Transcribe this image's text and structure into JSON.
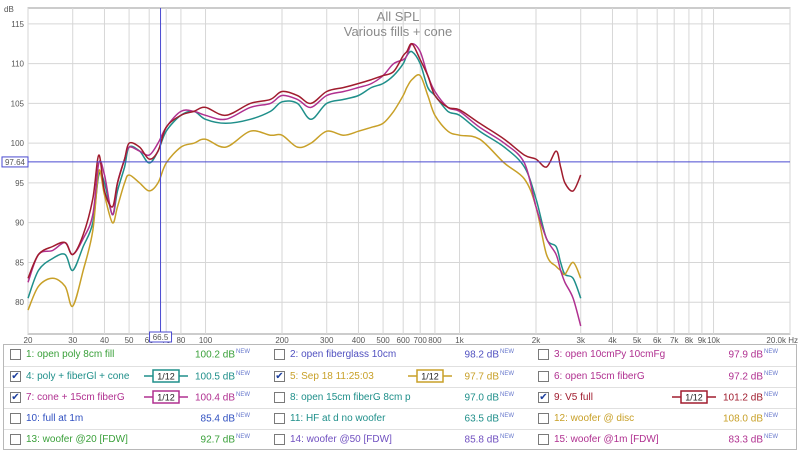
{
  "chart_data": {
    "type": "line",
    "title": "All SPL",
    "subtitle": "Various fills + cone",
    "ylabel": "dB",
    "xlabel_unit": "Hz",
    "xscale": "log",
    "xlim": [
      20,
      20000
    ],
    "ylim": [
      76,
      117
    ],
    "yticks": [
      80,
      85,
      90,
      95,
      100,
      105,
      110,
      115
    ],
    "xticks": [
      {
        "v": 20,
        "label": "20"
      },
      {
        "v": 30,
        "label": "30"
      },
      {
        "v": 40,
        "label": "40"
      },
      {
        "v": 50,
        "label": "50"
      },
      {
        "v": 60,
        "label": "60"
      },
      {
        "v": 70,
        "label": "70"
      },
      {
        "v": 80,
        "label": "80"
      },
      {
        "v": 100,
        "label": "100"
      },
      {
        "v": 200,
        "label": "200"
      },
      {
        "v": 300,
        "label": "300"
      },
      {
        "v": 400,
        "label": "400"
      },
      {
        "v": 500,
        "label": "500"
      },
      {
        "v": 600,
        "label": "600"
      },
      {
        "v": 700,
        "label": "700"
      },
      {
        "v": 800,
        "label": "800"
      },
      {
        "v": 1000,
        "label": "1k"
      },
      {
        "v": 2000,
        "label": "2k"
      },
      {
        "v": 3000,
        "label": "3k"
      },
      {
        "v": 4000,
        "label": "4k"
      },
      {
        "v": 5000,
        "label": "5k"
      },
      {
        "v": 6000,
        "label": "6k"
      },
      {
        "v": 7000,
        "label": "7k"
      },
      {
        "v": 8000,
        "label": "8k"
      },
      {
        "v": 9000,
        "label": "9k"
      },
      {
        "v": 10000,
        "label": "10k"
      },
      {
        "v": 20000,
        "label": "20.0k Hz"
      }
    ],
    "grid": true,
    "cursor": {
      "x": 66.5,
      "x_label": "66.5",
      "y": 97.64,
      "y_label": "97.64"
    },
    "series": [
      {
        "name": "4: poly + fiberGl + cone",
        "color": "#1f8f8a",
        "x": [
          20,
          22,
          25,
          28,
          30,
          33,
          36,
          38,
          40,
          43,
          45,
          48,
          50,
          55,
          60,
          65,
          70,
          80,
          90,
          100,
          120,
          150,
          180,
          200,
          230,
          260,
          300,
          350,
          400,
          450,
          500,
          550,
          600,
          620,
          650,
          700,
          750,
          800,
          900,
          1000,
          1200,
          1500,
          1800,
          2000,
          2200,
          2400,
          2500,
          2600,
          2800,
          3000
        ],
        "y": [
          80.5,
          84,
          85.5,
          86,
          84,
          87,
          90,
          96,
          95,
          91,
          94,
          97,
          99.5,
          99,
          97.5,
          99,
          101.5,
          103.5,
          104,
          103,
          102.5,
          103,
          104,
          105.2,
          105,
          103,
          105,
          105.5,
          106,
          107,
          107.5,
          108.5,
          110,
          111,
          111.5,
          110,
          107,
          106,
          104,
          103.5,
          101.5,
          99.5,
          97,
          93,
          88,
          87,
          85,
          83.5,
          83,
          80.5
        ]
      },
      {
        "name": "5: Sep 18 11:25:03",
        "color": "#c8a028",
        "x": [
          20,
          22,
          25,
          28,
          30,
          33,
          36,
          38,
          40,
          43,
          45,
          48,
          50,
          55,
          60,
          65,
          70,
          80,
          90,
          100,
          120,
          150,
          180,
          200,
          230,
          260,
          300,
          350,
          400,
          450,
          500,
          550,
          600,
          620,
          650,
          700,
          750,
          800,
          900,
          1000,
          1200,
          1500,
          1800,
          2000,
          2200,
          2400,
          2500,
          2600,
          2800,
          3000
        ],
        "y": [
          79,
          82,
          83,
          82,
          79.5,
          84,
          89,
          96.5,
          93.5,
          90,
          92,
          95,
          96,
          95,
          94,
          95,
          97.5,
          99.5,
          100,
          100.5,
          99.5,
          101.5,
          101,
          101,
          99.5,
          100,
          101.5,
          101,
          101.5,
          102,
          102.5,
          104,
          106,
          107,
          108,
          108.5,
          106,
          103.5,
          101.5,
          101,
          100.5,
          97.5,
          95.5,
          92,
          86,
          84.5,
          84,
          83.5,
          85,
          83
        ]
      },
      {
        "name": "7: cone + 15cm fiberG",
        "color": "#b03090",
        "x": [
          20,
          22,
          25,
          28,
          30,
          33,
          36,
          38,
          40,
          43,
          45,
          48,
          50,
          55,
          60,
          65,
          70,
          80,
          90,
          100,
          120,
          150,
          180,
          200,
          230,
          260,
          300,
          350,
          400,
          450,
          500,
          550,
          600,
          620,
          650,
          700,
          750,
          800,
          900,
          1000,
          1200,
          1500,
          1800,
          2000,
          2200,
          2400,
          2500,
          2600,
          2800,
          3000
        ],
        "y": [
          82.5,
          86,
          86.5,
          87.5,
          86,
          88,
          91,
          97.5,
          96,
          91,
          95,
          98,
          99.5,
          99,
          98.5,
          100,
          102,
          104,
          104,
          103.5,
          103,
          104.5,
          105,
          106,
          105.5,
          104.5,
          106,
          106.5,
          107,
          107.5,
          108.5,
          110,
          110.5,
          111,
          112.5,
          111.5,
          108.5,
          106.5,
          104.5,
          104,
          102,
          100,
          97.5,
          92,
          88,
          86,
          84,
          82.5,
          80.5,
          77
        ]
      },
      {
        "name": "9: V5 full",
        "color": "#a01c2e",
        "x": [
          20,
          22,
          25,
          28,
          30,
          33,
          36,
          38,
          40,
          43,
          45,
          48,
          50,
          55,
          60,
          65,
          70,
          80,
          90,
          100,
          120,
          150,
          180,
          200,
          230,
          260,
          300,
          350,
          400,
          450,
          500,
          550,
          600,
          620,
          650,
          700,
          750,
          800,
          900,
          1000,
          1200,
          1500,
          1800,
          2000,
          2200,
          2400,
          2500,
          2600,
          2800,
          3000
        ],
        "y": [
          83,
          86,
          87,
          87.5,
          86,
          88.5,
          93,
          98.5,
          94,
          92,
          95,
          98,
          100,
          99.5,
          98,
          99,
          102,
          103.5,
          104,
          104.5,
          103.5,
          105,
          105.5,
          106.5,
          106,
          105,
          106.5,
          107,
          107.5,
          108,
          108.5,
          109,
          111,
          111.5,
          112.5,
          110.5,
          108.5,
          106,
          104.5,
          104.2,
          102.5,
          100.5,
          98.5,
          98,
          97,
          99,
          97,
          95,
          94,
          96
        ]
      }
    ]
  },
  "legend": {
    "entries": [
      {
        "label": "1: open poly 8cm fill",
        "value": "100.2 dB",
        "sup": "NEW",
        "checked": false,
        "smoothing": "",
        "color": "#3aa03a"
      },
      {
        "label": "2: open fiberglass 10cm",
        "value": "98.2 dB",
        "sup": "NEW",
        "checked": false,
        "smoothing": "",
        "color": "#5050c0"
      },
      {
        "label": "3: open 10cmPy 10cmFg",
        "value": "97.9 dB",
        "sup": "NEW",
        "checked": false,
        "smoothing": "",
        "color": "#b03090"
      },
      {
        "label": "4: poly + fiberGl + cone",
        "value": "100.5 dB",
        "sup": "NEW",
        "checked": true,
        "smoothing": "1/12",
        "color": "#1f8f8a"
      },
      {
        "label": "5: Sep 18 11:25:03",
        "value": "97.7 dB",
        "sup": "NEW",
        "checked": true,
        "smoothing": "1/12",
        "color": "#c8a028"
      },
      {
        "label": "6: open 15cm fiberG",
        "value": "97.2 dB",
        "sup": "NEW",
        "checked": false,
        "smoothing": "",
        "color": "#b03090"
      },
      {
        "label": "7: cone + 15cm fiberG",
        "value": "100.4 dB",
        "sup": "NEW",
        "checked": true,
        "smoothing": "1/12",
        "color": "#b03090"
      },
      {
        "label": "8: open 15cm fiberG 8cm p",
        "value": "97.0 dB",
        "sup": "NEW",
        "checked": false,
        "smoothing": "",
        "color": "#1f8f8a"
      },
      {
        "label": "9: V5 full",
        "value": "101.2 dB",
        "sup": "NEW",
        "checked": true,
        "smoothing": "1/12",
        "color": "#a01c2e"
      },
      {
        "label": "10: full at 1m",
        "value": "85.4 dB",
        "sup": "NEW",
        "checked": false,
        "smoothing": "",
        "color": "#3050c0"
      },
      {
        "label": "11: HF at d no woofer",
        "value": "63.5 dB",
        "sup": "NEW",
        "checked": false,
        "smoothing": "",
        "color": "#1f8f8a"
      },
      {
        "label": "12: woofer @ disc",
        "value": "108.0 dB",
        "sup": "NEW",
        "checked": false,
        "smoothing": "",
        "color": "#c8a028"
      },
      {
        "label": "13: woofer @20 [FDW]",
        "value": "92.7 dB",
        "sup": "NEW",
        "checked": false,
        "smoothing": "",
        "color": "#3aa03a"
      },
      {
        "label": "14: woofer @50 [FDW]",
        "value": "85.8 dB",
        "sup": "NEW",
        "checked": false,
        "smoothing": "",
        "color": "#7050c0"
      },
      {
        "label": "15: woofer @1m [FDW]",
        "value": "83.3 dB",
        "sup": "NEW",
        "checked": false,
        "smoothing": "",
        "color": "#b03090"
      }
    ]
  }
}
